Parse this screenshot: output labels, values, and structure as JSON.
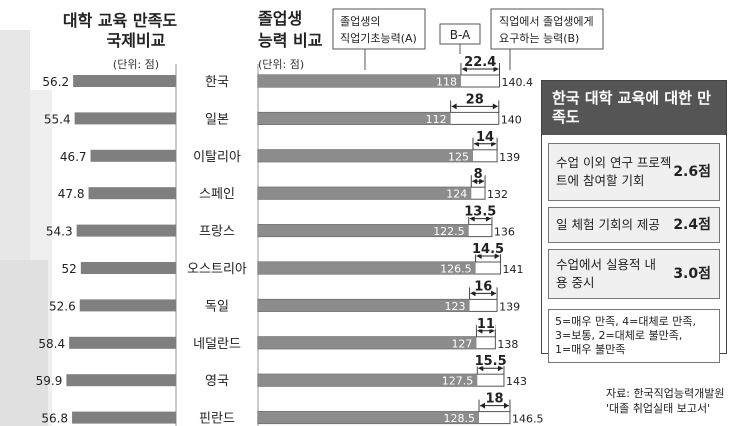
{
  "headers": {
    "left_title_line1": "대학 교육 만족도",
    "left_title_line2": "국제비교",
    "left_unit": "(단위: 점)",
    "right_title_line1": "졸업생",
    "right_title_line2": "능력 비교",
    "right_unit": "(단위: 점)",
    "callout_a_line1": "졸업생의",
    "callout_a_line2": "직업기초능력(A)",
    "callout_diff": "B-A",
    "callout_b_line1": "직업에서 졸업생에게",
    "callout_b_line2": "요구하는 능력(B)"
  },
  "chart_data": [
    {
      "type": "bar",
      "title": "대학 교육 만족도 국제비교",
      "unit": "(단위: 점)",
      "categories": [
        "한국",
        "일본",
        "이탈리아",
        "스페인",
        "프랑스",
        "오스트리아",
        "독일",
        "네덜란드",
        "영국",
        "핀란드"
      ],
      "value_labels": [
        "56.2",
        "55.4",
        "46.7",
        "47.8",
        "54.3",
        "52",
        "52.6",
        "58.4",
        "59.9",
        "56.8"
      ],
      "values": [
        56.2,
        55.4,
        46.7,
        47.8,
        54.3,
        52,
        52.6,
        58.4,
        59.9,
        56.8
      ],
      "orientation": "horizontal",
      "bar_color": "#7f7f7f"
    },
    {
      "type": "bar",
      "title": "졸업생 능력 비교",
      "unit": "(단위: 점)",
      "categories": [
        "한국",
        "일본",
        "이탈리아",
        "스페인",
        "프랑스",
        "오스트리아",
        "독일",
        "네덜란드",
        "영국",
        "핀란드"
      ],
      "series": [
        {
          "name": "졸업생의 직업기초능력(A)",
          "values": [
            118,
            112,
            125,
            124,
            122.5,
            126.5,
            123,
            127,
            127.5,
            128.5
          ],
          "labels": [
            "118",
            "112",
            "125",
            "124",
            "122.5",
            "126.5",
            "123",
            "127",
            "127.5",
            "128.5"
          ],
          "color": "#8c8c8c"
        },
        {
          "name": "직업에서 졸업생에게 요구하는 능력(B)",
          "values": [
            140.4,
            140,
            139,
            132,
            136,
            141,
            139,
            138,
            143,
            146.5
          ],
          "labels": [
            "140.4",
            "140",
            "139",
            "132",
            "136",
            "141",
            "139",
            "138",
            "143",
            "146.5"
          ],
          "color": "#ffffff"
        }
      ],
      "diff_name": "B-A",
      "diff_values": [
        22.4,
        28,
        14,
        8,
        13.5,
        14.5,
        16,
        11,
        15.5,
        18
      ],
      "diff_labels": [
        "22.4",
        "28",
        "14",
        "8",
        "13.5",
        "14.5",
        "16",
        "11",
        "15.5",
        "18"
      ]
    }
  ],
  "info_box": {
    "title": "한국 대학 교육에 대한 만족도",
    "items": [
      {
        "label": "수업 이외 연구 프로젝트에 참여할 기회",
        "value": "2.6점"
      },
      {
        "label": "일 체험 기회의 제공",
        "value": "2.4점"
      },
      {
        "label": "수업에서 실용적 내용 중시",
        "value": "3.0점"
      }
    ],
    "legend_line1": "5=매우 만족, 4=대체로 만족,",
    "legend_line2": "3=보통, 2=대체로 불만족,",
    "legend_line3": "1=매우 불만족"
  },
  "source": {
    "line1": "자료: 한국직업능력개발원",
    "line2": "'대졸 취업실태 보고서'"
  }
}
